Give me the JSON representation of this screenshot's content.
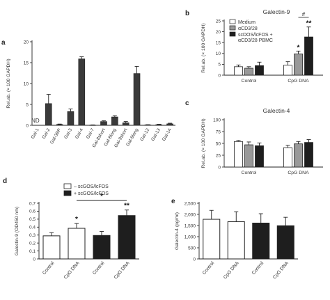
{
  "figure": {
    "panels": [
      "a",
      "b",
      "c",
      "d",
      "e"
    ]
  },
  "chart_data": [
    {
      "panel": "a",
      "type": "bar",
      "title": "",
      "xlabel": "",
      "ylabel": "Rel.ab. (× 100 GAPDH)",
      "ylim": [
        0,
        20
      ],
      "yticks": [
        0,
        5,
        10,
        15,
        20
      ],
      "categories": [
        "Gal-1",
        "Gal-2",
        "Gal-3BP",
        "Gal-3",
        "Gal-4",
        "Gal-7",
        "Gal-8short",
        "Gal-8long",
        "Gal-9short",
        "Gal-9long",
        "Gal-12",
        "Gal-13",
        "Gal-14"
      ],
      "values": [
        0,
        5.2,
        0.2,
        3.3,
        15.9,
        0.05,
        0.9,
        2.0,
        0.6,
        12.4,
        0.1,
        0.15,
        0.35
      ],
      "errors": [
        0,
        2.2,
        0.1,
        0.6,
        0.5,
        0.05,
        0.2,
        0.3,
        0.3,
        1.7,
        0.05,
        0.1,
        0.15
      ],
      "annotations": [
        {
          "category": "Gal-1",
          "text": "ND"
        }
      ],
      "color": "#3a3a3a"
    },
    {
      "panel": "b",
      "type": "bar",
      "title": "Galectin-9",
      "ylabel": "Rel.ab. (× 100 GAPDH)",
      "ylim": [
        0,
        25
      ],
      "yticks": [
        0,
        5,
        10,
        15,
        20,
        25
      ],
      "groups": [
        "Control",
        "CpG DNA"
      ],
      "series": [
        {
          "name": "Medium",
          "color": "#ffffff",
          "values": [
            3.9,
            4.6
          ],
          "errors": [
            0.8,
            1.6
          ]
        },
        {
          "name": "αCD3/28",
          "color": "#999999",
          "values": [
            3.2,
            9.8
          ],
          "errors": [
            0.7,
            1.3
          ]
        },
        {
          "name": "scDOS/lcFOS + αCD3/28 PBMC",
          "color": "#1e1e1e",
          "values": [
            4.4,
            17.6
          ],
          "errors": [
            1.6,
            4.6
          ]
        }
      ],
      "significance": [
        {
          "label": "*",
          "group": "CpG DNA",
          "series": "αCD3/28"
        },
        {
          "label": "**",
          "group": "CpG DNA",
          "series": "scDOS/lcFOS + αCD3/28 PBMC"
        },
        {
          "label": "#",
          "between": [
            "αCD3/28",
            "scDOS/lcFOS + αCD3/28 PBMC"
          ],
          "group": "CpG DNA"
        }
      ]
    },
    {
      "panel": "c",
      "type": "bar",
      "title": "Galectin-4",
      "ylabel": "Rel.ab. (× 100 GAPDH)",
      "ylim": [
        0,
        100
      ],
      "yticks": [
        0,
        25,
        50,
        75,
        100
      ],
      "groups": [
        "Control",
        "CpG DNA"
      ],
      "series": [
        {
          "name": "Medium",
          "color": "#ffffff",
          "values": [
            54,
            41
          ],
          "errors": [
            2,
            5
          ]
        },
        {
          "name": "αCD3/28",
          "color": "#999999",
          "values": [
            47,
            49
          ],
          "errors": [
            6,
            5
          ]
        },
        {
          "name": "scDOS/lcFOS + αCD3/28 PBMC",
          "color": "#1e1e1e",
          "values": [
            45,
            52
          ],
          "errors": [
            6,
            6
          ]
        }
      ]
    },
    {
      "panel": "d",
      "type": "bar",
      "title": "",
      "ylabel": "Galectin-9 (OD450 nm)",
      "ylim": [
        0,
        0.7
      ],
      "yticks": [
        "0",
        "0.1",
        "0.2",
        "0.3",
        "0.4",
        "0.5",
        "0.6",
        "0.7"
      ],
      "categories": [
        "Control",
        "CpG DNA",
        "Control",
        "CpG DNA"
      ],
      "values": [
        0.29,
        0.385,
        0.295,
        0.545
      ],
      "errors": [
        0.04,
        0.06,
        0.05,
        0.07
      ],
      "colors": [
        "#ffffff",
        "#ffffff",
        "#1e1e1e",
        "#1e1e1e"
      ],
      "legend": [
        {
          "label": "– scGOS/lcFOS",
          "color": "#ffffff"
        },
        {
          "label": "+ scGOS/lcFOS",
          "color": "#1e1e1e"
        }
      ],
      "significance": [
        {
          "label": "*",
          "index": 1
        },
        {
          "label": "**",
          "index": 3
        },
        {
          "label": "*",
          "between": [
            1,
            3
          ]
        }
      ]
    },
    {
      "panel": "e",
      "type": "bar",
      "title": "",
      "ylabel": "Galectin-4 (pg/ml)",
      "ylim": [
        0,
        2500
      ],
      "yticks": [
        "0",
        "500",
        "1,000",
        "1,500",
        "2,000",
        "2,500"
      ],
      "categories": [
        "Control",
        "CpG DNA",
        "Control",
        "CpG DNA"
      ],
      "values": [
        1780,
        1670,
        1610,
        1490
      ],
      "errors": [
        400,
        450,
        420,
        380
      ],
      "colors": [
        "#ffffff",
        "#ffffff",
        "#1e1e1e",
        "#1e1e1e"
      ]
    }
  ]
}
